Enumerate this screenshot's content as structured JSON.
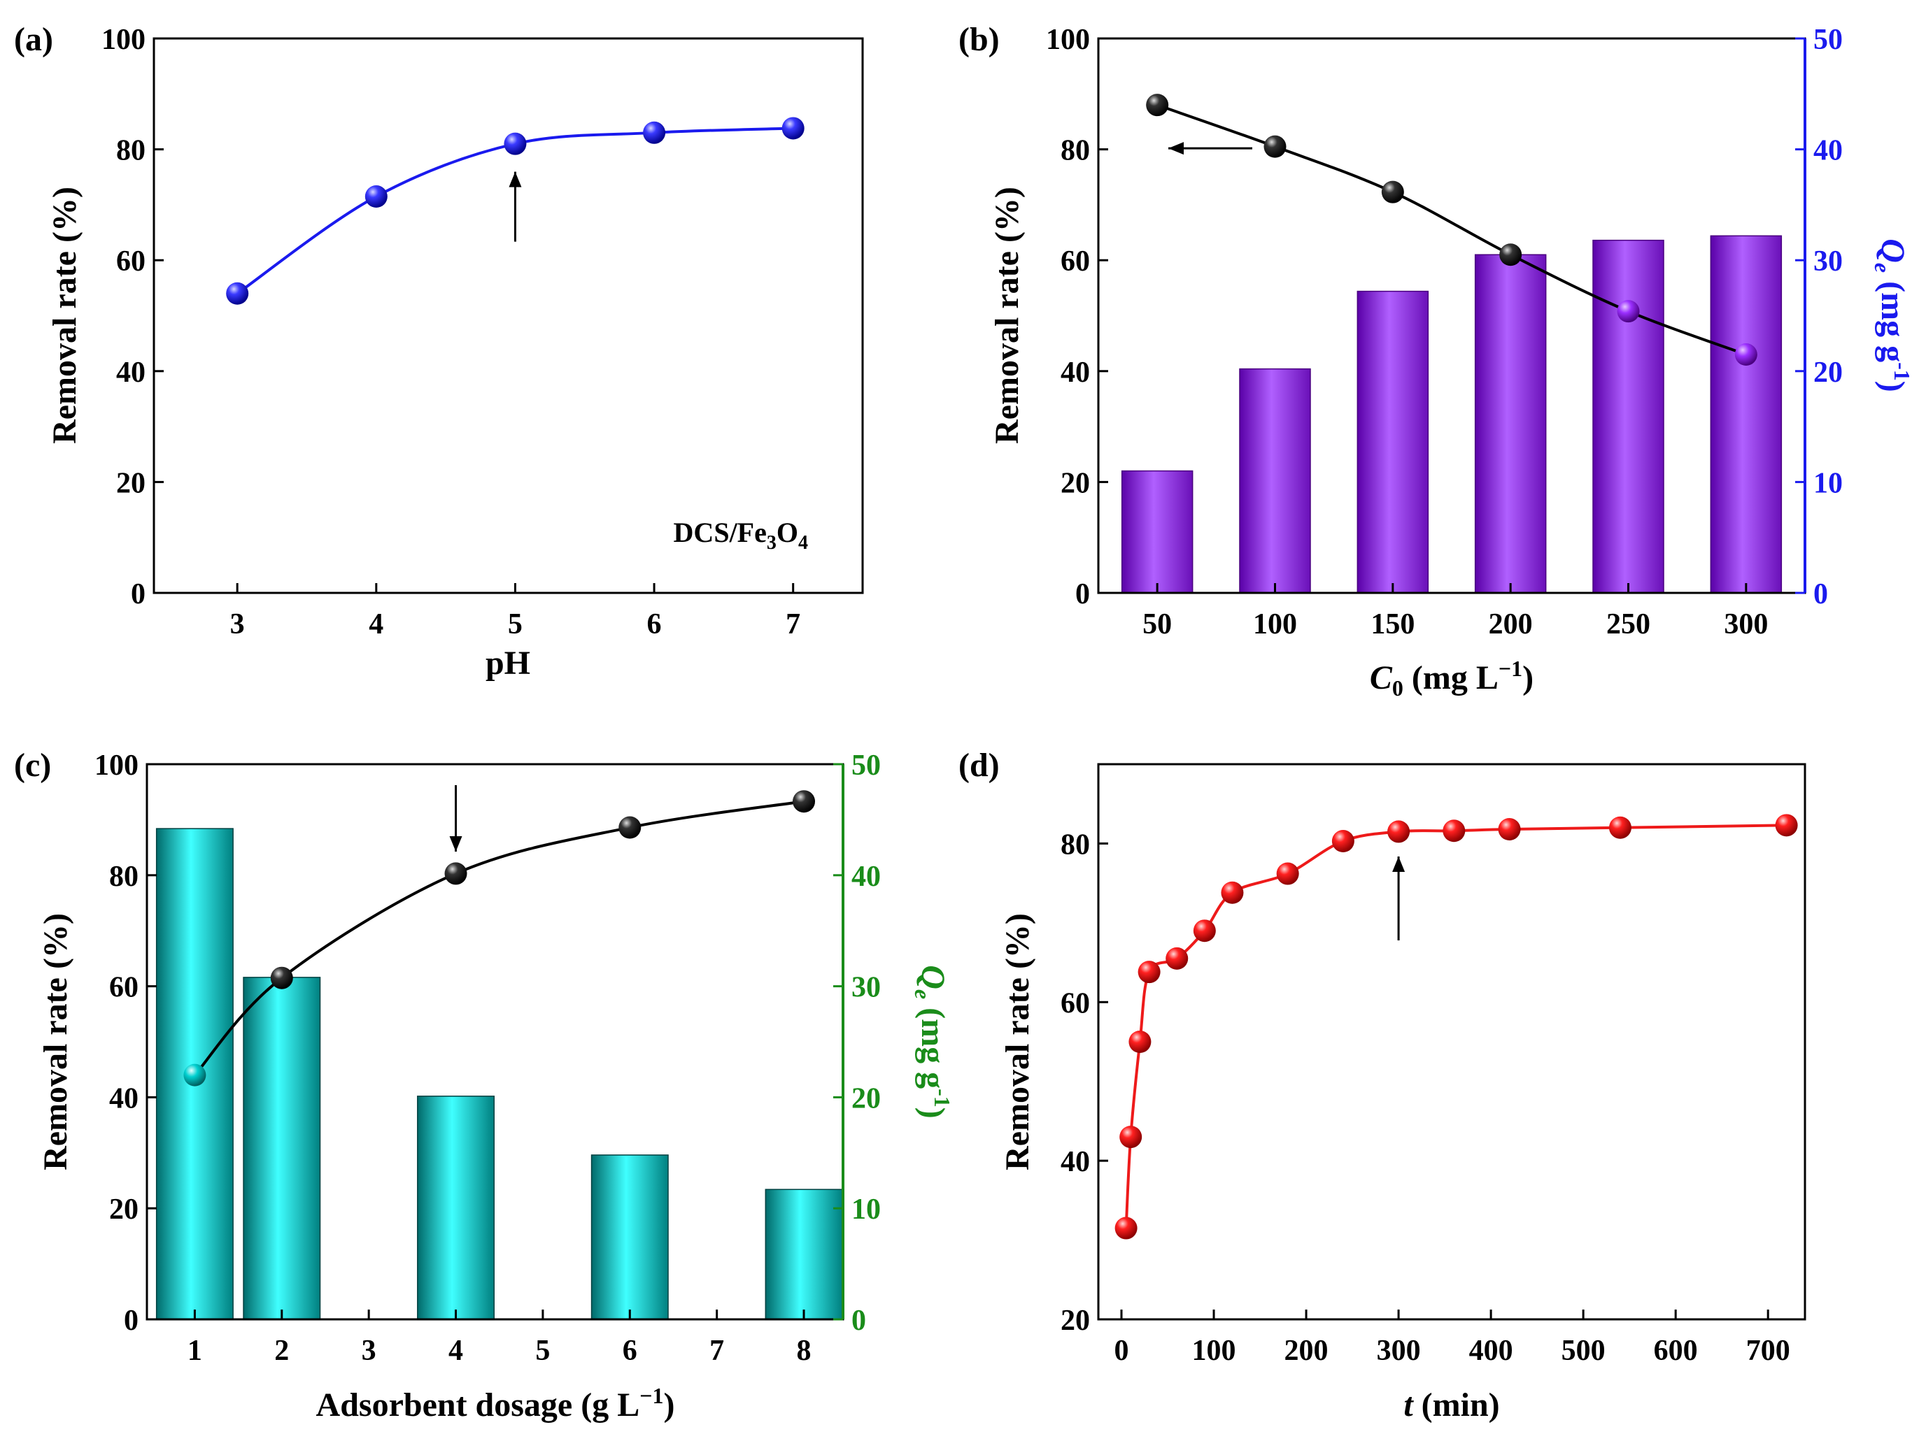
{
  "chart_data": [
    {
      "panel": "(a)",
      "type": "line",
      "xlabel": "pH",
      "ylabel": "Removal rate (%)",
      "annotation": {
        "base": "DCS/Fe",
        "sub1": "3",
        "mid": "O",
        "sub2": "4"
      },
      "arrow_at": 5,
      "arrow_direction": "up",
      "x": [
        3,
        4,
        5,
        6,
        7
      ],
      "y": [
        54,
        71.5,
        81,
        83,
        83.8
      ],
      "xlim": [
        2.4,
        7.5
      ],
      "ylim": [
        0,
        100
      ],
      "xticks": [
        "3",
        "4",
        "5",
        "6",
        "7"
      ],
      "yticks": [
        "0",
        "20",
        "40",
        "60",
        "80",
        "100"
      ],
      "color": "#1a1aee"
    },
    {
      "panel": "(b)",
      "type": "bar+line",
      "xlabel": {
        "main": "C",
        "sub": "0",
        "rest": " (mg L",
        "sup": "−1",
        "end": ")"
      },
      "ylabel": "Removal rate (%)",
      "y2label": {
        "main": "Q",
        "sub": "e",
        "rest": " (mg g",
        "sup": "-1",
        "end": ")"
      },
      "categories": [
        "50",
        "100",
        "150",
        "200",
        "250",
        "300"
      ],
      "line_values": [
        88,
        80.5,
        72.3,
        61,
        50.8,
        43
      ],
      "bar_values": [
        11,
        20.2,
        27.2,
        30.5,
        31.8,
        32.2
      ],
      "ylim": [
        0,
        100
      ],
      "y2lim": [
        0,
        50
      ],
      "yticks": [
        "0",
        "20",
        "40",
        "60",
        "80",
        "100"
      ],
      "y2ticks": [
        "0",
        "10",
        "20",
        "30",
        "40",
        "50"
      ],
      "arrow_direction": "left",
      "bar_color": "#9b30ff",
      "line_color": "#000000",
      "y2_color": "#1a1aee"
    },
    {
      "panel": "(c)",
      "type": "bar+line",
      "xlabel": {
        "main": "Adsorbent dosage (g L",
        "sup": "−1",
        "end": ")"
      },
      "ylabel": "Removal rate (%)",
      "y2label": {
        "main": "Q",
        "sub": "e",
        "rest": " (mg g",
        "sup": "-1",
        "end": ")"
      },
      "xticks": [
        "1",
        "2",
        "3",
        "4",
        "5",
        "6",
        "7",
        "8"
      ],
      "x": [
        1,
        2,
        4,
        6,
        8
      ],
      "line_values": [
        44,
        61.5,
        80.3,
        88.6,
        93.3
      ],
      "bar_values": [
        44.2,
        30.8,
        20.1,
        14.8,
        11.7
      ],
      "xlim": [
        0.45,
        8.45
      ],
      "ylim": [
        0,
        100
      ],
      "y2lim": [
        0,
        50
      ],
      "yticks": [
        "0",
        "20",
        "40",
        "60",
        "80",
        "100"
      ],
      "y2ticks": [
        "0",
        "10",
        "20",
        "30",
        "40",
        "50"
      ],
      "arrow_at": 4,
      "arrow_direction": "down",
      "bar_color": "#00cfcf",
      "line_color": "#000000",
      "y2_color": "#1a8c1a"
    },
    {
      "panel": "(d)",
      "type": "line",
      "xlabel": {
        "main": "t",
        "rest": " (min)"
      },
      "ylabel": "Removal rate (%)",
      "x": [
        5,
        10,
        20,
        30,
        60,
        90,
        120,
        180,
        240,
        300,
        360,
        420,
        540,
        720
      ],
      "y": [
        31.5,
        43,
        55,
        63.8,
        65.5,
        69,
        73.8,
        76.2,
        80.3,
        81.5,
        81.6,
        81.8,
        82,
        82.3
      ],
      "xlim": [
        -25,
        740
      ],
      "ylim": [
        20,
        90
      ],
      "xticks": [
        "0",
        "100",
        "200",
        "300",
        "400",
        "500",
        "600",
        "700"
      ],
      "yticks": [
        "20",
        "40",
        "60",
        "80"
      ],
      "arrow_at": 300,
      "arrow_direction": "up",
      "color": "#ee1a1a"
    }
  ]
}
